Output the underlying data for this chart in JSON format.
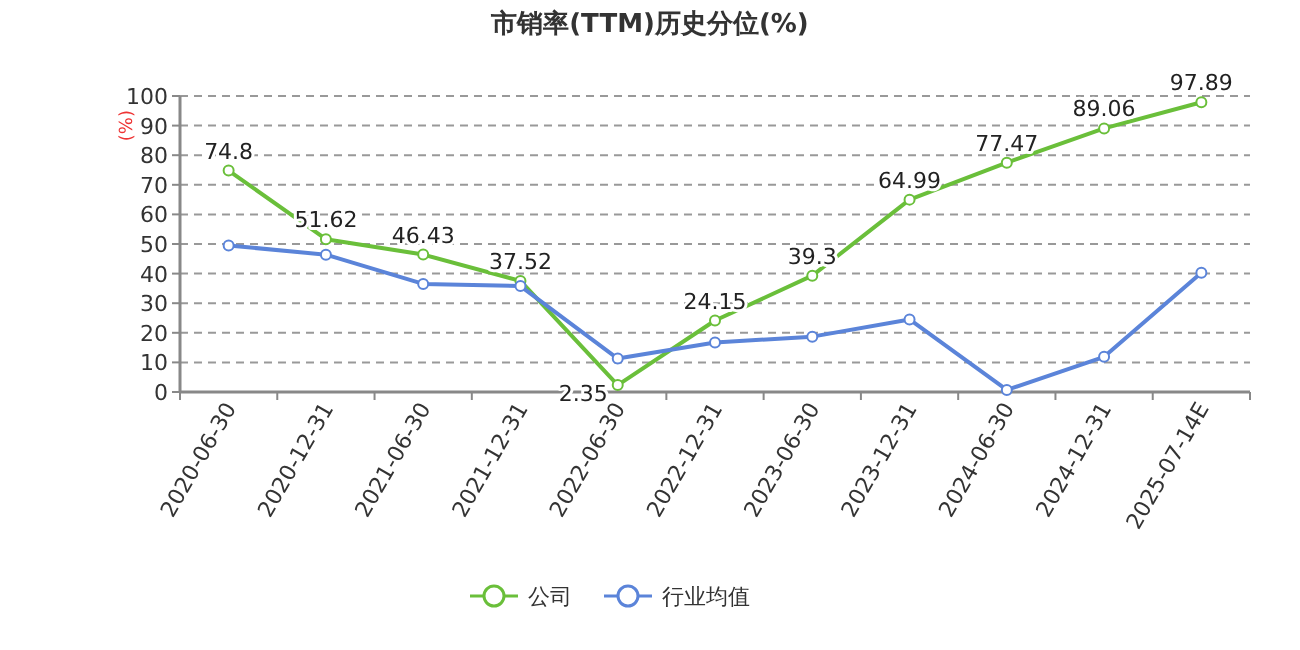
{
  "chart_data": {
    "type": "line",
    "title": "市销率(TTM)历史分位(%)",
    "ylabel": "(%)",
    "categories": [
      "2020-06-30",
      "2020-12-31",
      "2021-06-30",
      "2021-12-31",
      "2022-06-30",
      "2022-12-31",
      "2023-06-30",
      "2023-12-31",
      "2024-06-30",
      "2024-12-31",
      "2025-07-14E"
    ],
    "series": [
      {
        "name": "公司",
        "color": "#6abf3a",
        "values": [
          74.8,
          51.62,
          46.43,
          37.52,
          2.35,
          24.15,
          39.3,
          64.99,
          77.47,
          89.06,
          97.89
        ],
        "value_labels": [
          "74.8",
          "51.62",
          "46.43",
          "37.52",
          "2.35",
          "24.15",
          "39.3",
          "64.99",
          "77.47",
          "89.06",
          "97.89"
        ]
      },
      {
        "name": "行业均值",
        "color": "#5b84d9",
        "values": [
          49.5,
          46.4,
          36.5,
          35.8,
          11.3,
          16.7,
          18.7,
          24.5,
          0.7,
          11.9,
          40.3
        ]
      }
    ],
    "ylim": [
      0,
      100
    ],
    "yticks": [
      0,
      10,
      20,
      30,
      40,
      50,
      60,
      70,
      80,
      90,
      100
    ],
    "grid": "y",
    "legend": "bottom",
    "marker": "circle",
    "line_style": "solid"
  }
}
